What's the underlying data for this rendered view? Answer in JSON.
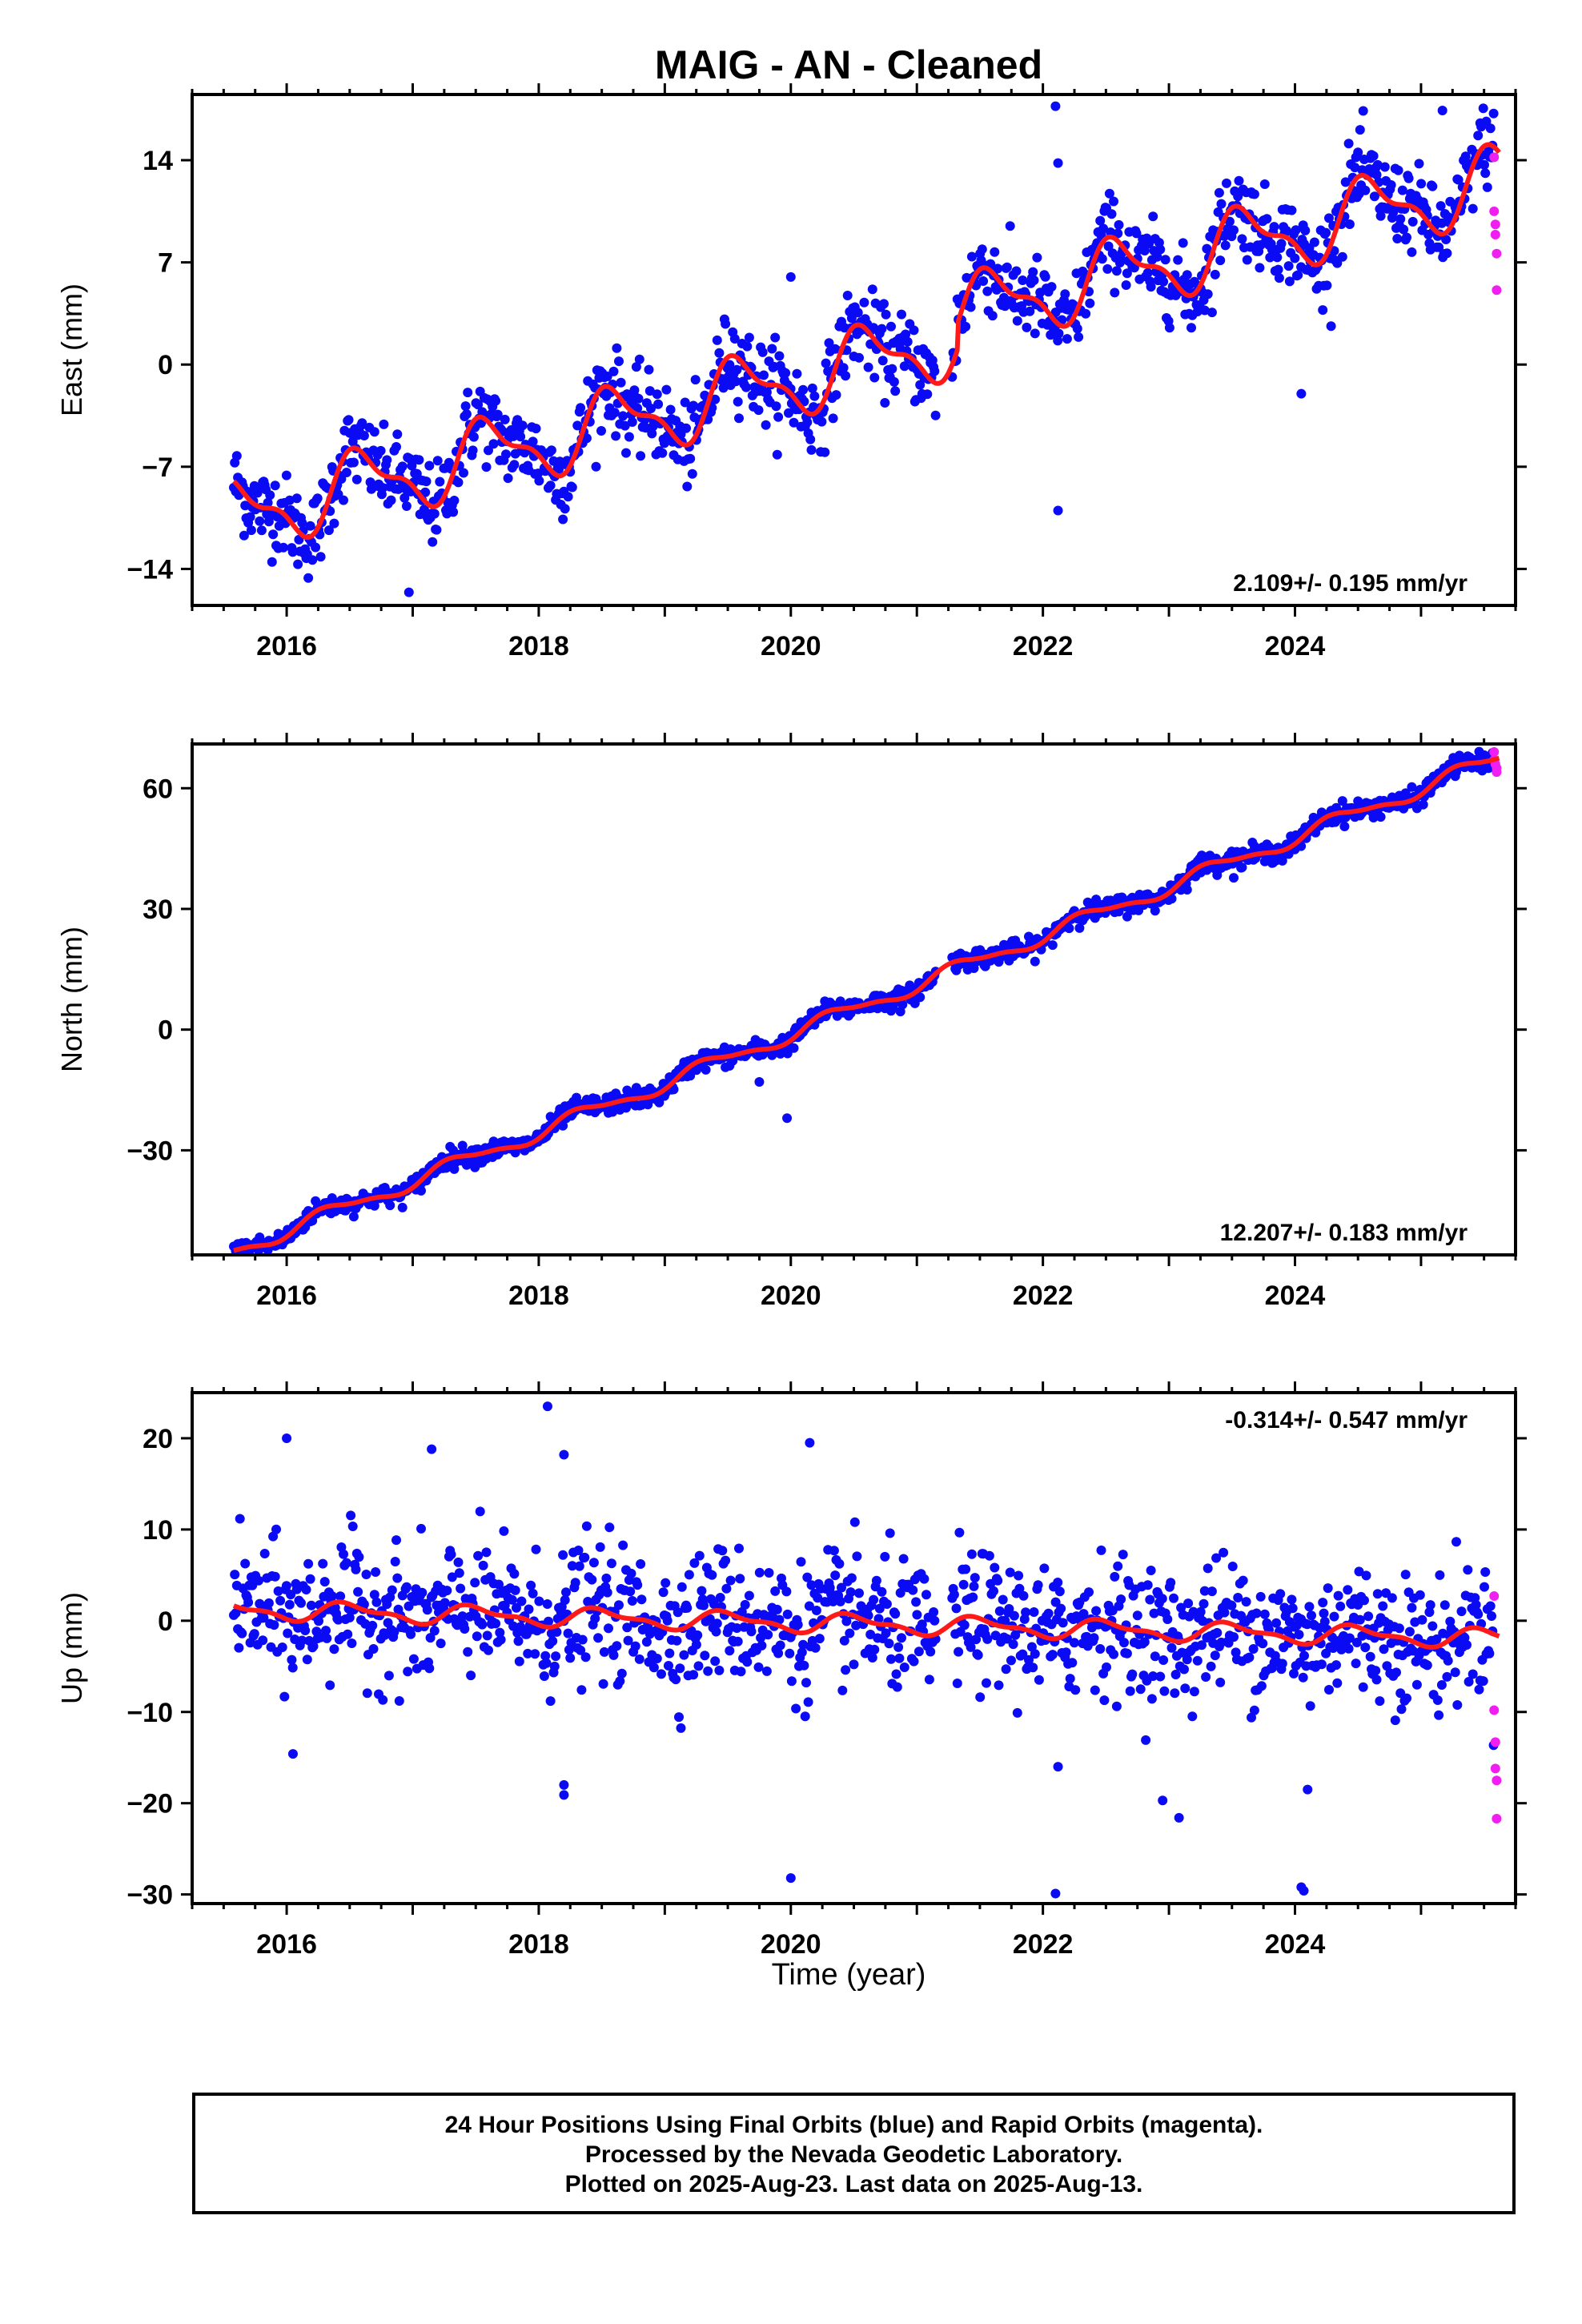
{
  "chart_data": [
    {
      "type": "scatter",
      "title": "MAIG  - AN - Cleaned",
      "ylabel": "East (mm)",
      "xlabel": "",
      "xlim": [
        2015.25,
        2025.75
      ],
      "ylim": [
        -16.5,
        18.5
      ],
      "yticks": [
        -14,
        -7,
        0,
        7,
        14
      ],
      "xticks": [
        2016,
        2018,
        2020,
        2022,
        2024
      ],
      "rate_label": "2.109+/- 0.195 mm/yr",
      "rate_position": "bottom-right",
      "trend": {
        "start_year": 2015.58,
        "end_year": 2025.62,
        "start": -10.4,
        "rate": 2.109,
        "amp": 2.2,
        "amp2": 0.9,
        "phase": 0.35,
        "breaks": [
          {
            "year": 2021.32,
            "offset": 1.8
          }
        ]
      },
      "scatter": {
        "sigma": 1.4,
        "sampling_days": 3,
        "gaps": [
          [
            2021.15,
            2021.28
          ]
        ]
      },
      "outliers": [
        {
          "x": 2022.1,
          "y": 17.7
        },
        {
          "x": 2022.12,
          "y": 13.8
        },
        {
          "x": 2025.17,
          "y": 17.4
        },
        {
          "x": 2022.12,
          "y": -10.0
        },
        {
          "x": 2020.0,
          "y": 6.0
        },
        {
          "x": 2016.97,
          "y": -15.6
        },
        {
          "x": 2024.05,
          "y": -2.0
        }
      ],
      "rapid_points": [
        {
          "x": 2025.58,
          "y": 14.2
        },
        {
          "x": 2025.58,
          "y": 10.5
        },
        {
          "x": 2025.59,
          "y": 9.6
        },
        {
          "x": 2025.59,
          "y": 8.9
        },
        {
          "x": 2025.6,
          "y": 7.6
        },
        {
          "x": 2025.6,
          "y": 5.1
        }
      ],
      "colors": {
        "final": "#0a0af5",
        "rapid": "#f01ef0",
        "model": "#ff1a1a"
      }
    },
    {
      "type": "scatter",
      "title": "",
      "ylabel": "North (mm)",
      "xlabel": "",
      "xlim": [
        2015.25,
        2025.75
      ],
      "ylim": [
        -56,
        71
      ],
      "yticks": [
        -30,
        0,
        30,
        60
      ],
      "xticks": [
        2016,
        2018,
        2020,
        2022,
        2024
      ],
      "rate_label": "12.207+/- 0.183 mm/yr",
      "rate_position": "bottom-right",
      "trend": {
        "start_year": 2015.58,
        "end_year": 2025.62,
        "start": -55.0,
        "rate": 12.207,
        "amp": 1.8,
        "amp2": 0.6,
        "phase": 0.1,
        "breaks": []
      },
      "scatter": {
        "sigma": 1.2,
        "sampling_days": 3,
        "gaps": [
          [
            2021.15,
            2021.28
          ]
        ]
      },
      "outliers": [
        {
          "x": 2019.97,
          "y": -22.0
        },
        {
          "x": 2019.75,
          "y": -13.0
        }
      ],
      "rapid_points": [
        {
          "x": 2025.58,
          "y": 69.0
        },
        {
          "x": 2025.58,
          "y": 67.0
        },
        {
          "x": 2025.59,
          "y": 66.0
        },
        {
          "x": 2025.6,
          "y": 65.0
        },
        {
          "x": 2025.6,
          "y": 64.0
        }
      ],
      "colors": {
        "final": "#0a0af5",
        "rapid": "#f01ef0",
        "model": "#ff1a1a"
      }
    },
    {
      "type": "scatter",
      "title": "",
      "ylabel": "Up (mm)",
      "xlabel": "Time (year)",
      "xlim": [
        2015.25,
        2025.75
      ],
      "ylim": [
        -31,
        25
      ],
      "yticks": [
        -30,
        -20,
        -10,
        0,
        10,
        20
      ],
      "xticks": [
        2016,
        2018,
        2020,
        2022,
        2024
      ],
      "rate_label": "-0.314+/- 0.547 mm/yr",
      "rate_position": "top-right",
      "trend": {
        "start_year": 2015.58,
        "end_year": 2025.62,
        "start": 1.2,
        "rate": -0.314,
        "amp": 0.9,
        "amp2": 0.4,
        "phase": 0.25,
        "breaks": []
      },
      "scatter": {
        "sigma": 3.6,
        "sampling_days": 3,
        "gaps": [
          [
            2021.15,
            2021.28
          ]
        ]
      },
      "outliers": [
        {
          "x": 2018.07,
          "y": 23.5
        },
        {
          "x": 2018.2,
          "y": 18.2
        },
        {
          "x": 2016.0,
          "y": 20.0
        },
        {
          "x": 2020.15,
          "y": 19.5
        },
        {
          "x": 2017.15,
          "y": 18.8
        },
        {
          "x": 2020.0,
          "y": -28.2
        },
        {
          "x": 2022.1,
          "y": -29.9
        },
        {
          "x": 2024.07,
          "y": -29.6
        },
        {
          "x": 2024.05,
          "y": -29.2
        },
        {
          "x": 2018.2,
          "y": -19.1
        },
        {
          "x": 2018.2,
          "y": -18.0
        },
        {
          "x": 2024.1,
          "y": -18.5
        },
        {
          "x": 2023.08,
          "y": -21.6
        },
        {
          "x": 2016.05,
          "y": -14.6
        },
        {
          "x": 2022.12,
          "y": -16.0
        },
        {
          "x": 2022.95,
          "y": -19.7
        }
      ],
      "rapid_points": [
        {
          "x": 2025.58,
          "y": 2.7
        },
        {
          "x": 2025.58,
          "y": -9.8
        },
        {
          "x": 2025.59,
          "y": -13.3
        },
        {
          "x": 2025.59,
          "y": -16.2
        },
        {
          "x": 2025.6,
          "y": -17.5
        },
        {
          "x": 2025.6,
          "y": -21.7
        }
      ],
      "colors": {
        "final": "#0a0af5",
        "rapid": "#f01ef0",
        "model": "#ff1a1a"
      }
    }
  ],
  "footer": {
    "line1": "24 Hour Positions Using Final Orbits (blue) and Rapid Orbits (magenta).",
    "line2": "Processed by the Nevada Geodetic Laboratory.",
    "line3": "Plotted on 2025-Aug-23. Last data on 2025-Aug-13."
  }
}
